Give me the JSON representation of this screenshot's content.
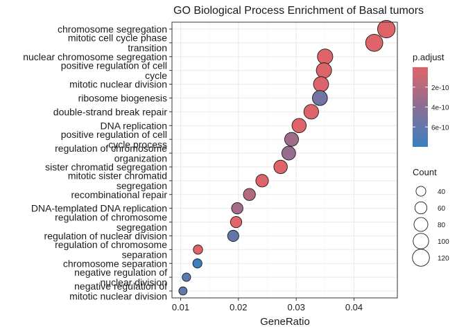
{
  "chart_data": {
    "type": "scatter",
    "title": "GO Biological Process Enrichment of Basal tumors",
    "xlabel": "GeneRatio",
    "ylabel": "",
    "xlim": [
      0.0085,
      0.0475
    ],
    "x_ticks": [
      0.01,
      0.02,
      0.03,
      0.04
    ],
    "x_tick_labels": [
      "0.01",
      "0.02",
      "0.03",
      "0.04"
    ],
    "grid": true,
    "legend_position": "right",
    "categories": [
      [
        "chromosome segregation"
      ],
      [
        "mitotic cell cycle phase",
        "transition"
      ],
      [
        "nuclear chromosome segregation"
      ],
      [
        "positive regulation of cell",
        "cycle"
      ],
      [
        "mitotic nuclear division"
      ],
      [
        "ribosome biogenesis"
      ],
      [
        "double-strand break repair"
      ],
      [
        "DNA replication"
      ],
      [
        "positive regulation of cell",
        "cycle process"
      ],
      [
        "regulation of chromosome",
        "organization"
      ],
      [
        "sister chromatid segregation"
      ],
      [
        "mitotic sister chromatid",
        "segregation"
      ],
      [
        "recombinational repair"
      ],
      [
        "DNA-templated DNA replication"
      ],
      [
        "regulation of chromosome",
        "segregation"
      ],
      [
        "regulation of nuclear division"
      ],
      [
        "regulation of chromosome",
        "separation"
      ],
      [
        "chromosome separation"
      ],
      [
        "negative regulation of",
        "nuclear division"
      ],
      [
        "negative regulation of",
        "mitotic nuclear division"
      ]
    ],
    "x": [
      0.0456,
      0.0435,
      0.035,
      0.0348,
      0.0343,
      0.0341,
      0.0326,
      0.0305,
      0.0292,
      0.0287,
      0.0273,
      0.0241,
      0.0219,
      0.0198,
      0.0196,
      0.0191,
      0.013,
      0.0129,
      0.011,
      0.0104
    ],
    "count": [
      128,
      122,
      98,
      97,
      95,
      94,
      90,
      84,
      80,
      79,
      75,
      66,
      60,
      54,
      53,
      52,
      36,
      35,
      30,
      28
    ],
    "p_adjust": [
      5e-12,
      8e-12,
      1.2e-11,
      2e-11,
      1.8e-11,
      5.2e-10,
      1.5e-11,
      1e-11,
      3.1e-10,
      3.4e-10,
      1.3e-11,
      1e-11,
      2.1e-10,
      2.8e-10,
      2e-12,
      6.1e-10,
      1e-11,
      8e-10,
      6.5e-10,
      6.3e-10
    ],
    "color_legend": {
      "title": "p.adjust",
      "ticks": [
        2e-10,
        4e-10,
        6e-10
      ],
      "tick_labels": [
        "2e-10",
        "4e-10",
        "6e-10"
      ],
      "range": [
        0,
        8e-10
      ],
      "low_color": "#e06468",
      "high_color": "#3a7fc0"
    },
    "size_legend": {
      "title": "Count",
      "values": [
        40,
        60,
        80,
        100,
        120
      ],
      "labels": [
        "40",
        "60",
        "80",
        "100",
        "120"
      ]
    }
  }
}
